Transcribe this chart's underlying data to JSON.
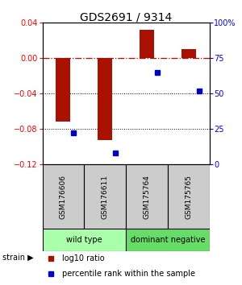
{
  "title": "GDS2691 / 9314",
  "samples": [
    "GSM176606",
    "GSM176611",
    "GSM175764",
    "GSM175765"
  ],
  "log10_ratio": [
    -0.072,
    -0.093,
    0.032,
    0.01
  ],
  "percentile_rank": [
    22,
    8,
    65,
    52
  ],
  "groups": [
    {
      "label": "wild type",
      "samples": [
        0,
        1
      ],
      "color": "#aaffaa"
    },
    {
      "label": "dominant negative",
      "samples": [
        2,
        3
      ],
      "color": "#66dd66"
    }
  ],
  "ylim_left": [
    -0.12,
    0.04
  ],
  "ylim_right": [
    0,
    100
  ],
  "yticks_left": [
    -0.12,
    -0.08,
    -0.04,
    0.0,
    0.04
  ],
  "yticks_right": [
    0,
    25,
    50,
    75,
    100
  ],
  "bar_color": "#aa1100",
  "dot_color": "#0000cc",
  "dotted_lines": [
    -0.04,
    -0.08
  ],
  "bar_width": 0.35,
  "legend_bar_label": "log10 ratio",
  "legend_dot_label": "percentile rank within the sample",
  "strain_label": "strain",
  "bg_color": "#ffffff",
  "sample_box_color": "#cccccc"
}
